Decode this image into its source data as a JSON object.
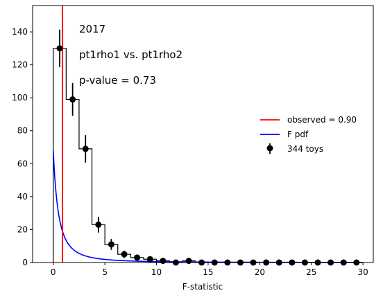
{
  "chart_data": {
    "type": "bar",
    "xlabel": "F-statistic",
    "ylabel": "",
    "xlim": [
      -2,
      31
    ],
    "ylim": [
      0,
      156
    ],
    "x_ticks": [
      0,
      5,
      10,
      15,
      20,
      25,
      30
    ],
    "y_ticks": [
      0,
      20,
      40,
      60,
      80,
      100,
      120,
      140
    ],
    "annotations": [
      "2017",
      "pt1rho1 vs. pt1rho2",
      "p-value = 0.73"
    ],
    "histogram": {
      "name": "344 toys",
      "bin_edges": [
        0,
        1.25,
        2.5,
        3.75,
        5,
        6.25,
        7.5,
        8.75,
        10,
        11.25,
        12.5,
        13.75,
        15,
        16.25,
        17.5,
        18.75,
        20,
        21.25,
        22.5,
        23.75,
        25,
        26.25,
        27.5,
        28.75,
        30
      ],
      "counts": [
        130,
        99,
        69,
        23,
        11,
        5,
        3,
        2,
        1,
        0,
        1,
        0,
        0,
        0,
        0,
        0,
        0,
        0,
        0,
        0,
        0,
        0,
        0,
        0
      ],
      "errors": [
        11.4,
        9.9,
        8.3,
        4.8,
        3.3,
        2.2,
        1.7,
        1.4,
        1.0,
        0,
        1.0,
        0,
        0,
        0,
        0,
        0,
        0,
        0,
        0,
        0,
        0,
        0,
        0,
        0
      ]
    },
    "observed": {
      "name": "observed = 0.90",
      "value": 0.9,
      "color": "#ff0000"
    },
    "f_pdf": {
      "name": "F pdf",
      "color": "#0000ff",
      "scale": 68,
      "d1": 2,
      "d2": 2
    },
    "legend": {
      "position": "center-right",
      "entries": [
        "observed = 0.90",
        "F pdf",
        "344 toys"
      ]
    }
  }
}
